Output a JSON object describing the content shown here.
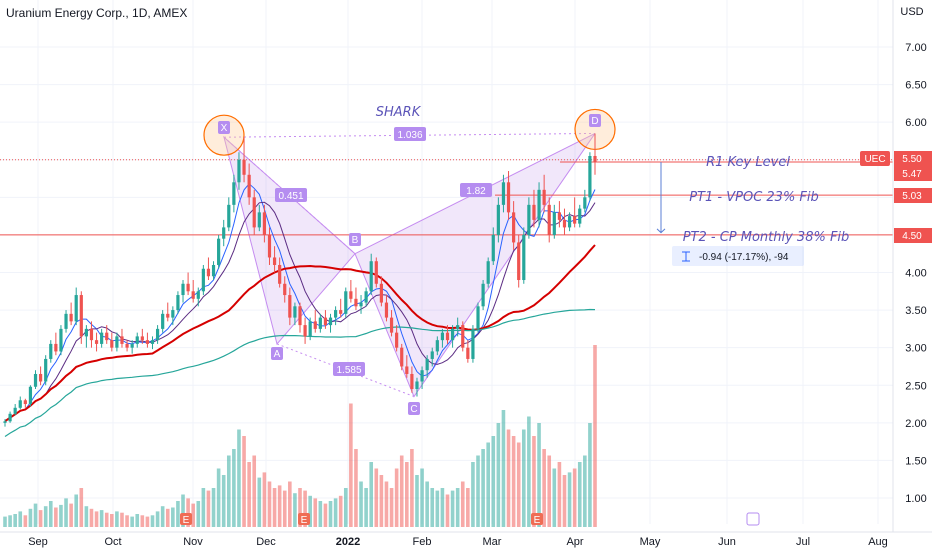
{
  "title": "Uranium Energy Corp., 1D, AMEX",
  "currency": "USD",
  "chart_data": {
    "type": "candlestick",
    "symbol_title": "Uranium Energy Corp., 1D, AMEX",
    "y_ticks": [
      1.0,
      1.5,
      2.0,
      2.5,
      3.0,
      3.5,
      4.0,
      4.5,
      5.0,
      5.5,
      6.0,
      6.5,
      7.0
    ],
    "ylim": [
      0.6,
      7.6
    ],
    "x_month_labels": [
      "Sep",
      "Oct",
      "Nov",
      "Dec",
      "2022",
      "Feb",
      "Mar",
      "Apr",
      "May",
      "Jun",
      "Jul",
      "Aug"
    ],
    "price_labels": [
      {
        "text": "UEC",
        "value": 5.5,
        "color": "#ef5350"
      },
      {
        "text": "5.50",
        "value": 5.5,
        "color": "#ef5350"
      },
      {
        "text": "5.47",
        "value": 5.47,
        "color": "#ef5350"
      },
      {
        "text": "5.03",
        "value": 5.03,
        "color": "#ef5350"
      },
      {
        "text": "4.50",
        "value": 4.5,
        "color": "#ef5350"
      }
    ],
    "pattern": {
      "name": "SHARK",
      "points": [
        {
          "label": "X",
          "value": 5.8
        },
        {
          "label": "A",
          "value": 3.05
        },
        {
          "label": "B",
          "value": 4.25
        },
        {
          "label": "C",
          "value": 2.35
        },
        {
          "label": "D",
          "value": 5.85
        }
      ],
      "ratios": [
        "0.451",
        "1.036",
        "1.585",
        "1.82"
      ]
    },
    "levels": [
      {
        "text": "R1 Key Level",
        "value": 5.47
      },
      {
        "text": "PT1 -  VPOC 23% Fib",
        "value": 5.03
      },
      {
        "text": "PT2 - CP Monthly 38% Fib",
        "value": 4.5
      }
    ],
    "measure": "-0.94 (-17.17%), -94",
    "earnings_marker": "E",
    "ohlc": [
      [
        2.0,
        2.05,
        1.95,
        2.02
      ],
      [
        2.02,
        2.15,
        2.0,
        2.12
      ],
      [
        2.12,
        2.25,
        2.1,
        2.2
      ],
      [
        2.2,
        2.35,
        2.18,
        2.3
      ],
      [
        2.3,
        2.32,
        2.2,
        2.25
      ],
      [
        2.25,
        2.5,
        2.22,
        2.48
      ],
      [
        2.48,
        2.7,
        2.45,
        2.65
      ],
      [
        2.65,
        2.75,
        2.5,
        2.55
      ],
      [
        2.55,
        2.9,
        2.5,
        2.85
      ],
      [
        2.85,
        3.1,
        2.8,
        3.05
      ],
      [
        3.05,
        3.2,
        2.9,
        2.95
      ],
      [
        2.95,
        3.3,
        2.9,
        3.25
      ],
      [
        3.25,
        3.5,
        3.2,
        3.45
      ],
      [
        3.45,
        3.6,
        3.3,
        3.35
      ],
      [
        3.35,
        3.8,
        3.3,
        3.7
      ],
      [
        3.7,
        3.75,
        3.05,
        3.15
      ],
      [
        3.15,
        3.3,
        3.0,
        3.25
      ],
      [
        3.25,
        3.35,
        3.0,
        3.1
      ],
      [
        3.1,
        3.2,
        2.95,
        3.05
      ],
      [
        3.05,
        3.25,
        3.0,
        3.2
      ],
      [
        3.2,
        3.3,
        3.05,
        3.1
      ],
      [
        3.1,
        3.2,
        2.95,
        3.0
      ],
      [
        3.0,
        3.2,
        2.95,
        3.15
      ],
      [
        3.15,
        3.25,
        3.0,
        3.05
      ],
      [
        3.05,
        3.1,
        2.95,
        3.0
      ],
      [
        3.0,
        3.1,
        2.92,
        3.05
      ],
      [
        3.05,
        3.2,
        3.0,
        3.15
      ],
      [
        3.15,
        3.25,
        3.05,
        3.1
      ],
      [
        3.1,
        3.2,
        3.0,
        3.05
      ],
      [
        3.05,
        3.15,
        2.98,
        3.1
      ],
      [
        3.1,
        3.3,
        3.05,
        3.25
      ],
      [
        3.25,
        3.5,
        3.2,
        3.45
      ],
      [
        3.45,
        3.6,
        3.35,
        3.4
      ],
      [
        3.4,
        3.55,
        3.3,
        3.5
      ],
      [
        3.5,
        3.75,
        3.45,
        3.7
      ],
      [
        3.7,
        3.9,
        3.6,
        3.85
      ],
      [
        3.85,
        4.0,
        3.7,
        3.75
      ],
      [
        3.75,
        3.9,
        3.6,
        3.65
      ],
      [
        3.65,
        3.8,
        3.55,
        3.75
      ],
      [
        3.75,
        4.1,
        3.7,
        4.05
      ],
      [
        4.05,
        4.2,
        3.9,
        3.95
      ],
      [
        3.95,
        4.15,
        3.9,
        4.1
      ],
      [
        4.1,
        4.5,
        4.05,
        4.45
      ],
      [
        4.45,
        4.7,
        4.35,
        4.6
      ],
      [
        4.6,
        5.0,
        4.55,
        4.9
      ],
      [
        4.9,
        5.3,
        4.8,
        5.2
      ],
      [
        5.2,
        5.6,
        5.1,
        5.5
      ],
      [
        5.5,
        5.8,
        5.2,
        5.3
      ],
      [
        5.3,
        5.45,
        4.9,
        5.0
      ],
      [
        5.0,
        5.1,
        4.5,
        4.6
      ],
      [
        4.6,
        4.9,
        4.55,
        4.8
      ],
      [
        4.8,
        4.9,
        4.4,
        4.5
      ],
      [
        4.5,
        4.6,
        4.1,
        4.2
      ],
      [
        4.2,
        4.35,
        4.0,
        4.1
      ],
      [
        4.1,
        4.2,
        3.8,
        3.85
      ],
      [
        3.85,
        3.95,
        3.6,
        3.7
      ],
      [
        3.7,
        3.8,
        3.3,
        3.4
      ],
      [
        3.4,
        3.6,
        3.3,
        3.55
      ],
      [
        3.55,
        3.6,
        3.2,
        3.3
      ],
      [
        3.3,
        3.4,
        3.05,
        3.15
      ],
      [
        3.15,
        3.4,
        3.1,
        3.35
      ],
      [
        3.35,
        3.5,
        3.2,
        3.25
      ],
      [
        3.25,
        3.45,
        3.2,
        3.4
      ],
      [
        3.4,
        3.5,
        3.25,
        3.3
      ],
      [
        3.3,
        3.45,
        3.2,
        3.4
      ],
      [
        3.4,
        3.55,
        3.3,
        3.5
      ],
      [
        3.5,
        3.65,
        3.4,
        3.45
      ],
      [
        3.45,
        3.8,
        3.4,
        3.75
      ],
      [
        3.75,
        3.9,
        3.6,
        3.65
      ],
      [
        3.65,
        3.8,
        3.5,
        3.55
      ],
      [
        3.55,
        3.7,
        3.45,
        3.6
      ],
      [
        3.6,
        3.8,
        3.55,
        3.75
      ],
      [
        3.75,
        4.25,
        3.7,
        4.15
      ],
      [
        4.15,
        4.2,
        3.8,
        3.85
      ],
      [
        3.85,
        3.95,
        3.55,
        3.6
      ],
      [
        3.6,
        3.7,
        3.35,
        3.4
      ],
      [
        3.4,
        3.5,
        3.15,
        3.2
      ],
      [
        3.2,
        3.3,
        2.95,
        3.0
      ],
      [
        3.0,
        3.05,
        2.7,
        2.75
      ],
      [
        2.75,
        2.9,
        2.6,
        2.65
      ],
      [
        2.65,
        2.75,
        2.4,
        2.45
      ],
      [
        2.45,
        2.6,
        2.35,
        2.55
      ],
      [
        2.55,
        2.75,
        2.45,
        2.7
      ],
      [
        2.7,
        2.9,
        2.6,
        2.85
      ],
      [
        2.85,
        3.0,
        2.75,
        2.95
      ],
      [
        2.95,
        3.15,
        2.9,
        3.1
      ],
      [
        3.1,
        3.25,
        3.0,
        3.2
      ],
      [
        3.2,
        3.3,
        3.05,
        3.1
      ],
      [
        3.1,
        3.3,
        3.0,
        3.25
      ],
      [
        3.25,
        3.4,
        3.15,
        3.3
      ],
      [
        3.3,
        3.35,
        2.95,
        3.0
      ],
      [
        3.0,
        3.1,
        2.8,
        2.85
      ],
      [
        2.85,
        3.3,
        2.8,
        3.25
      ],
      [
        3.25,
        3.6,
        3.2,
        3.55
      ],
      [
        3.55,
        3.9,
        3.5,
        3.85
      ],
      [
        3.85,
        4.2,
        3.8,
        4.15
      ],
      [
        4.15,
        4.6,
        4.1,
        4.5
      ],
      [
        4.5,
        5.0,
        4.4,
        4.9
      ],
      [
        4.9,
        5.3,
        4.8,
        5.2
      ],
      [
        5.2,
        5.35,
        4.7,
        4.8
      ],
      [
        4.8,
        4.95,
        4.3,
        4.4
      ],
      [
        4.4,
        4.5,
        3.8,
        3.9
      ],
      [
        3.9,
        4.6,
        3.85,
        4.5
      ],
      [
        4.5,
        5.0,
        4.45,
        4.9
      ],
      [
        4.9,
        5.1,
        4.6,
        4.7
      ],
      [
        4.7,
        5.2,
        4.6,
        5.1
      ],
      [
        5.1,
        5.3,
        4.8,
        4.9
      ],
      [
        4.9,
        5.0,
        4.4,
        4.5
      ],
      [
        4.5,
        4.9,
        4.45,
        4.8
      ],
      [
        4.8,
        4.95,
        4.6,
        4.7
      ],
      [
        4.7,
        4.85,
        4.5,
        4.6
      ],
      [
        4.6,
        4.8,
        4.55,
        4.75
      ],
      [
        4.75,
        5.0,
        4.6,
        4.65
      ],
      [
        4.65,
        4.9,
        4.6,
        4.85
      ],
      [
        4.85,
        5.1,
        4.8,
        5.0
      ],
      [
        5.0,
        5.6,
        4.95,
        5.55
      ],
      [
        5.55,
        5.85,
        5.3,
        5.47
      ]
    ],
    "volume": [
      0.08,
      0.09,
      0.1,
      0.12,
      0.09,
      0.14,
      0.18,
      0.13,
      0.16,
      0.2,
      0.15,
      0.17,
      0.22,
      0.18,
      0.25,
      0.3,
      0.16,
      0.14,
      0.12,
      0.13,
      0.11,
      0.1,
      0.12,
      0.11,
      0.09,
      0.08,
      0.1,
      0.09,
      0.08,
      0.09,
      0.12,
      0.16,
      0.14,
      0.15,
      0.2,
      0.25,
      0.22,
      0.18,
      0.2,
      0.3,
      0.28,
      0.3,
      0.45,
      0.4,
      0.55,
      0.6,
      0.75,
      0.7,
      0.5,
      0.55,
      0.38,
      0.42,
      0.35,
      0.3,
      0.32,
      0.28,
      0.35,
      0.26,
      0.3,
      0.28,
      0.24,
      0.22,
      0.2,
      0.18,
      0.2,
      0.22,
      0.24,
      0.3,
      0.95,
      0.6,
      0.35,
      0.3,
      0.5,
      0.45,
      0.4,
      0.35,
      0.3,
      0.45,
      0.55,
      0.5,
      0.6,
      0.4,
      0.45,
      0.35,
      0.3,
      0.28,
      0.3,
      0.25,
      0.28,
      0.3,
      0.35,
      0.3,
      0.5,
      0.55,
      0.6,
      0.65,
      0.7,
      0.8,
      0.9,
      0.75,
      0.7,
      0.65,
      0.75,
      0.85,
      0.7,
      0.8,
      0.6,
      0.55,
      0.45,
      0.5,
      0.4,
      0.42,
      0.45,
      0.5,
      0.55,
      0.8,
      1.4
    ],
    "sma_fast": [],
    "sma_slow": [],
    "ma_red": [],
    "ma_teal": []
  }
}
